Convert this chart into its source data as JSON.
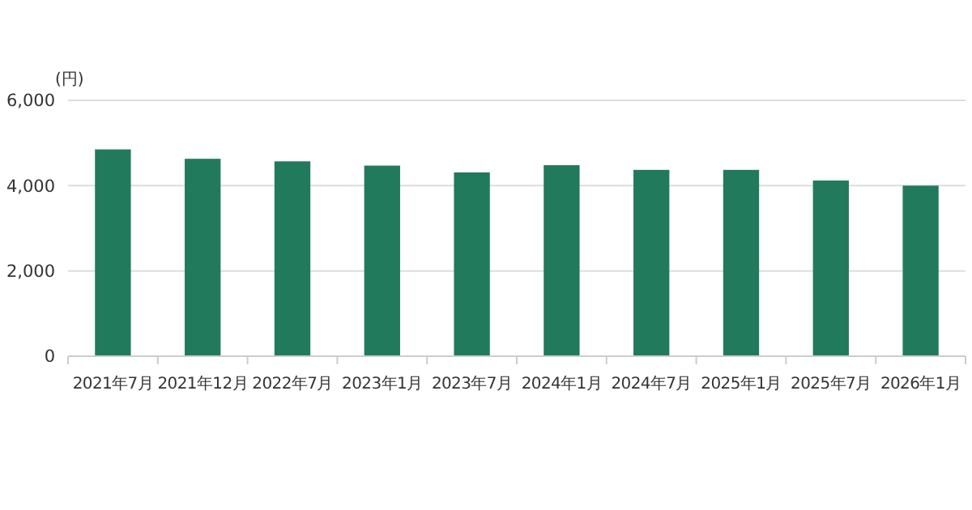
{
  "chart_data": {
    "type": "bar",
    "ylabel": "(円)",
    "categories": [
      "2021年7月",
      "2021年12月",
      "2022年7月",
      "2023年1月",
      "2023年7月",
      "2024年1月",
      "2024年7月",
      "2025年1月",
      "2025年7月",
      "2026年1月"
    ],
    "values": [
      4850,
      4630,
      4570,
      4470,
      4310,
      4480,
      4370,
      4370,
      4120,
      4000
    ],
    "color": "#217a5b",
    "ylim": [
      0,
      6000
    ],
    "yticks": [
      0,
      {
        "value": 2000,
        "label": "2,000"
      },
      {
        "value": 4000,
        "label": "4,000"
      },
      {
        "value": 6000,
        "label": "6,000"
      }
    ],
    "grid": "y"
  }
}
